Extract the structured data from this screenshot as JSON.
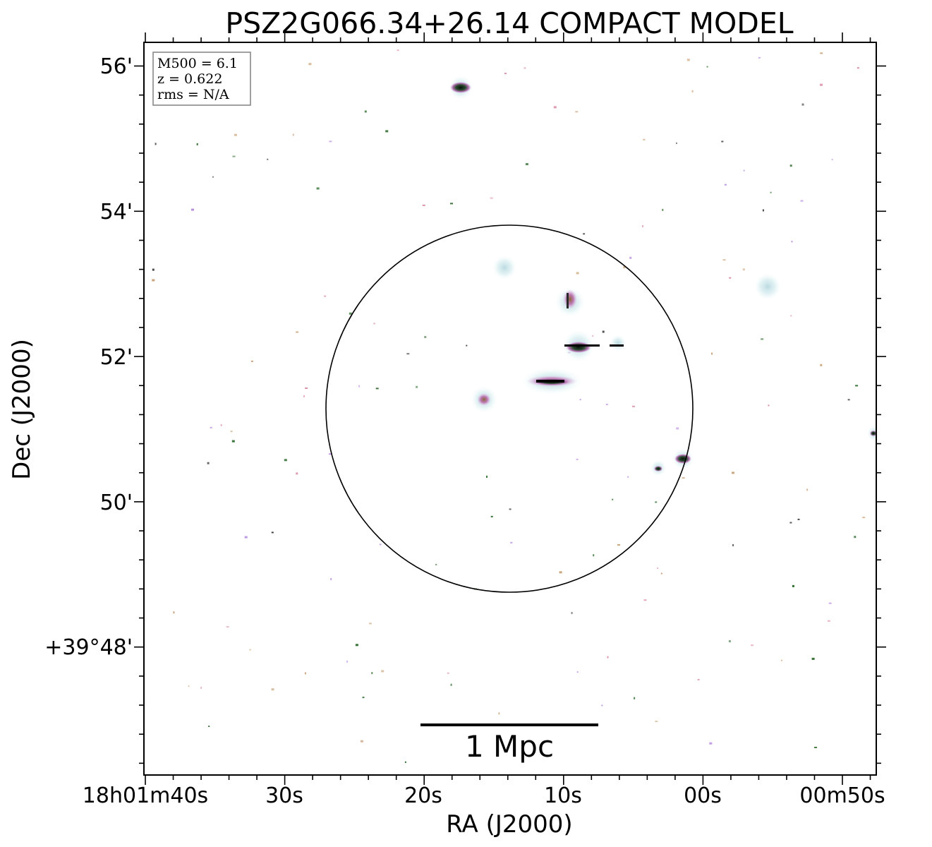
{
  "title": "PSZ2G066.34+26.14 COMPACT MODEL",
  "xlabel": "RA (J2000)",
  "ylabel": "Dec (J2000)",
  "info": {
    "mass": "M500 = 6.1",
    "redshift": "z = 0.622",
    "rms": "rms = N/A"
  },
  "scalebar_label": "1 Mpc",
  "ra_ticks": [
    "18h01m40s",
    "30s",
    "20s",
    "10s",
    "00s",
    "00m50s"
  ],
  "dec_ticks": [
    "56'",
    "54'",
    "52'",
    "50'",
    "+39°48'"
  ],
  "colors": {
    "frame": "#000000",
    "circle": "#000000",
    "source_halo": "#cfe9ec",
    "source_mid": "#c58ad0",
    "source_core": "#0f1f14",
    "noise_pink": "#d98aa8",
    "noise_purple": "#b98ee0",
    "noise_green": "#2d6a2d"
  },
  "map_features": {
    "aperture_circle": true,
    "colormap": "cubehelix-like (white background, cyan/purple/green/black sources)",
    "compact_sources": 12
  }
}
